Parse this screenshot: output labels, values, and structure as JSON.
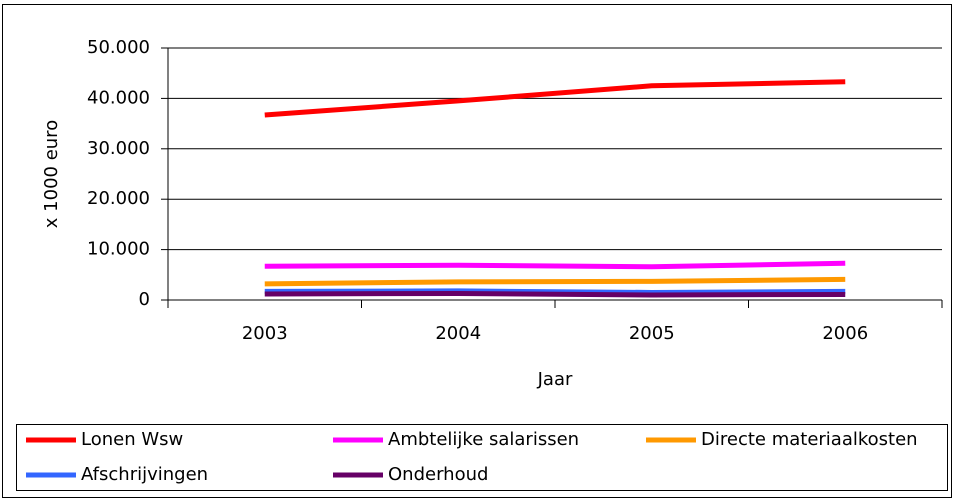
{
  "chart_data": {
    "type": "line",
    "categories": [
      "2003",
      "2004",
      "2005",
      "2006"
    ],
    "xlabel": "Jaar",
    "ylabel": "x 1000 euro",
    "ylim": [
      0,
      50000
    ],
    "yticks": [
      0,
      {
        "value": 10000,
        "label": "10.000"
      },
      {
        "value": 20000,
        "label": "20.000"
      },
      {
        "value": 30000,
        "label": "30.000"
      },
      {
        "value": 40000,
        "label": "40.000"
      },
      {
        "value": 50000,
        "label": "50.000"
      }
    ],
    "grid": true,
    "legend": "bottom",
    "series": [
      {
        "name": "Lonen Wsw",
        "color": "#ff0000",
        "values": [
          36700,
          39500,
          42500,
          43300
        ]
      },
      {
        "name": "Ambtelijke salarissen",
        "color": "#ff00ff",
        "values": [
          6700,
          6900,
          6600,
          7300
        ]
      },
      {
        "name": "Directe materiaalkosten",
        "color": "#ff9900",
        "values": [
          3200,
          3600,
          3700,
          4100
        ]
      },
      {
        "name": "Afschrijvingen",
        "color": "#3366ff",
        "values": [
          1700,
          1800,
          1500,
          1700
        ]
      },
      {
        "name": "Onderhoud",
        "color": "#660066",
        "values": [
          1200,
          1300,
          1000,
          1100
        ]
      }
    ]
  }
}
